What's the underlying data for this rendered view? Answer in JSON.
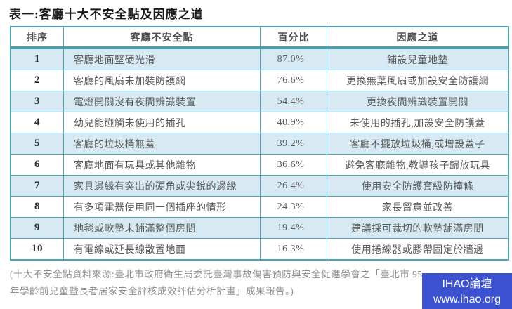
{
  "page": {
    "title": "表一:客廳十大不安全點及因應之道"
  },
  "table": {
    "columns": [
      "排序",
      "客廳不安全點",
      "百分比",
      "因應之道"
    ],
    "rows": [
      {
        "rank": "1",
        "hazard": "客廳地面堅硬光滑",
        "percent": "87.0%",
        "solution": "鋪設兒童地墊"
      },
      {
        "rank": "2",
        "hazard": "客廳的風扇未加裝防護網",
        "percent": "76.6%",
        "solution": "更換無葉風扇或加設安全防護網"
      },
      {
        "rank": "3",
        "hazard": "電燈開關沒有夜間辨識裝置",
        "percent": "54.4%",
        "solution": "更換夜間辨識裝置開關"
      },
      {
        "rank": "4",
        "hazard": "幼兒能碰觸未使用的插孔",
        "percent": "40.9%",
        "solution": "未使用的插孔,加設安全防護蓋"
      },
      {
        "rank": "5",
        "hazard": "客廳的垃圾桶無蓋",
        "percent": "39.2%",
        "solution": "客廳不擺放垃圾桶,或增設蓋子"
      },
      {
        "rank": "6",
        "hazard": "客廳地面有玩具或其他雜物",
        "percent": "36.6%",
        "solution": "避免客廳雜物,教導孩子歸放玩具"
      },
      {
        "rank": "7",
        "hazard": "家具邊緣有突出的硬角或尖銳的邊緣",
        "percent": "26.4%",
        "solution": "使用安全防護套級防撞條"
      },
      {
        "rank": "8",
        "hazard": "有多項電器使用同一個插座的情形",
        "percent": "24.3%",
        "solution": "家長留意並改善"
      },
      {
        "rank": "9",
        "hazard": "地毯或軟墊未鋪滿整個房間",
        "percent": "19.4%",
        "solution": "建議採可裁切的軟墊舖滿房間"
      },
      {
        "rank": "10",
        "hazard": "有電線或延長線散置地面",
        "percent": "16.3%",
        "solution": "使用捲線器或膠帶固定於牆邊"
      }
    ]
  },
  "footnote": {
    "lines": [
      "(十大不安全點資料來源:臺北市政府衛生局委託臺灣事故傷害預防與安全促進學會之「臺北市 95",
      "年學齡前兒童暨長者居家安全評核成效評估分析計畫」成果報告。)"
    ]
  },
  "watermark": {
    "site_name": "IHAO論壇",
    "site_url": "www.ihao.org"
  },
  "colors": {
    "table_border": "#4fa3b2",
    "header_rule": "#4d9dad",
    "row_alt_bg": "#d7eaf3",
    "row_bg": "#ffffff",
    "body_text": "#595959",
    "rank_text": "#2f2f2f",
    "footnote_text": "#8f8f8f",
    "title_text": "#1a1a1a",
    "watermark_bg": "#3b51cf",
    "watermark_text": "#ffffff"
  }
}
